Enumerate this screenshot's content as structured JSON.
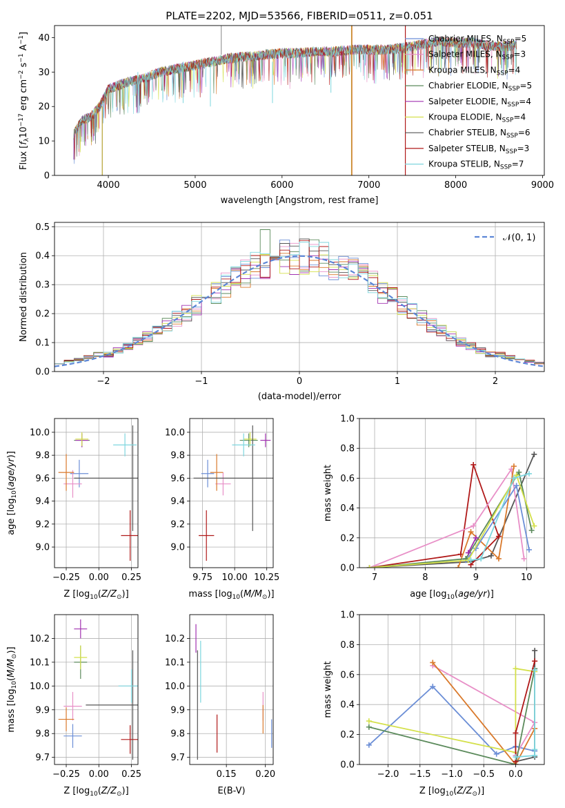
{
  "chart_data": [
    {
      "type": "line",
      "panel": "spectrum",
      "title": "PLATE=2202, MJD=53566, FIBERID=0511, z=0.051",
      "xlabel": "wavelength [Angstrom, rest frame]",
      "ylabel": "Flux [f_λ 10^-17 erg cm^-2 s^-1 A^-1]",
      "xlim": [
        3380,
        9020
      ],
      "ylim": [
        0,
        43.5
      ],
      "xticks": [
        4000,
        5000,
        6000,
        7000,
        8000,
        9000
      ],
      "yticks": [
        0,
        10,
        20,
        30,
        40
      ],
      "grid": false,
      "legend_position": "upper right",
      "legend": [
        {
          "label": "Chabrier MILES, N_SSP=5",
          "color": "#6b8ed6"
        },
        {
          "label": "Salpeter MILES, N_SSP=3",
          "color": "#e88fc7"
        },
        {
          "label": "Kroupa MILES, N_SSP=4",
          "color": "#d9792b"
        },
        {
          "label": "Chabrier ELODIE, N_SSP=5",
          "color": "#5b8a5b"
        },
        {
          "label": "Salpeter ELODIE, N_SSP=4",
          "color": "#a030b0"
        },
        {
          "label": "Kroupa ELODIE, N_SSP=4",
          "color": "#d4e04a"
        },
        {
          "label": "Chabrier STELIB, N_SSP=6",
          "color": "#555555"
        },
        {
          "label": "Salpeter STELIB, N_SSP=3",
          "color": "#b01818"
        },
        {
          "label": "Kroupa STELIB, N_SSP=7",
          "color": "#7dd6de"
        }
      ],
      "continuum": {
        "x": [
          3600,
          3700,
          3800,
          3900,
          4000,
          4100,
          4200,
          4400,
          4600,
          4800,
          5000,
          5200,
          5400,
          5600,
          5800,
          6000,
          6200,
          6400,
          6600,
          6800,
          7000,
          7200,
          7400,
          7600,
          7800,
          8000,
          8200,
          8400,
          8600,
          8700
        ],
        "y": [
          12,
          16,
          17,
          20,
          25,
          26,
          27,
          28,
          30,
          31,
          32,
          33,
          34,
          34.5,
          35,
          35.5,
          35.5,
          36,
          36,
          36.5,
          36.5,
          36.5,
          37,
          38,
          39,
          38.5,
          38.5,
          37.5,
          37.5,
          38
        ]
      },
      "vertical_spikes_x": [
        3930,
        5300,
        6800,
        6805,
        7420
      ]
    },
    {
      "type": "line",
      "panel": "residual-distribution",
      "xlabel": "(data-model)/error",
      "ylabel": "Normed distribution",
      "xlim": [
        -2.5,
        2.5
      ],
      "ylim": [
        0,
        0.515
      ],
      "xticks": [
        -2,
        -1,
        0,
        1,
        2
      ],
      "yticks": [
        0.0,
        0.1,
        0.2,
        0.3,
        0.4,
        0.5
      ],
      "grid": true,
      "legend_position": "upper right",
      "legend": [
        {
          "label": "𝒩(0, 1)",
          "color": "#5c86d6",
          "dashed": true
        }
      ],
      "histogram_bin_width": 0.1,
      "histogram_peak_approx": 0.49,
      "reference_curve": "normal pdf, mean 0, sd 1"
    },
    {
      "type": "scatter",
      "panel": "age-vs-Z",
      "xlabel": "Z [log10(Z/Z⊙)]",
      "ylabel": "age [log10(age/yr)]",
      "xlim": [
        -0.34,
        0.3
      ],
      "ylim": [
        8.82,
        10.12
      ],
      "xticks": [
        -0.25,
        0.0,
        0.25
      ],
      "yticks": [
        9.0,
        9.2,
        9.4,
        9.6,
        9.8,
        10.0
      ],
      "grid": true,
      "points": [
        {
          "x": -0.15,
          "y": 9.64,
          "xerr": 0.07,
          "yerr": 0.12,
          "color": "#6b8ed6"
        },
        {
          "x": -0.2,
          "y": 9.55,
          "xerr": 0.07,
          "yerr": 0.12,
          "color": "#e88fc7"
        },
        {
          "x": -0.25,
          "y": 9.65,
          "xerr": 0.06,
          "yerr": 0.16,
          "color": "#d9792b"
        },
        {
          "x": -0.13,
          "y": 9.93,
          "xerr": 0.06,
          "yerr": 0.06,
          "color": "#5b8a5b"
        },
        {
          "x": -0.13,
          "y": 9.93,
          "xerr": 0.05,
          "yerr": 0.06,
          "color": "#a030b0"
        },
        {
          "x": -0.13,
          "y": 9.94,
          "xerr": 0.05,
          "yerr": 0.06,
          "color": "#d4e04a"
        },
        {
          "x": 0.26,
          "y": 9.6,
          "xerr": 0.45,
          "yerr": 0.46,
          "color": "#555555"
        },
        {
          "x": 0.24,
          "y": 9.1,
          "xerr": 0.07,
          "yerr": 0.22,
          "color": "#b01818"
        },
        {
          "x": 0.2,
          "y": 9.89,
          "xerr": 0.09,
          "yerr": 0.1,
          "color": "#7dd6de"
        }
      ]
    },
    {
      "type": "scatter",
      "panel": "age-vs-mass",
      "xlabel": "mass [log10(M/M⊙)]",
      "ylabel": "",
      "xlim": [
        9.65,
        10.3
      ],
      "ylim": [
        8.82,
        10.12
      ],
      "xticks": [
        9.75,
        10.0,
        10.25
      ],
      "yticks": [
        9.0,
        9.2,
        9.4,
        9.6,
        9.8,
        10.0
      ],
      "grid": true,
      "points": [
        {
          "x": 9.79,
          "y": 9.64,
          "xerr": 0.05,
          "yerr": 0.12,
          "color": "#6b8ed6"
        },
        {
          "x": 9.91,
          "y": 9.55,
          "xerr": 0.06,
          "yerr": 0.1,
          "color": "#e88fc7"
        },
        {
          "x": 9.86,
          "y": 9.65,
          "xerr": 0.05,
          "yerr": 0.16,
          "color": "#d9792b"
        },
        {
          "x": 10.11,
          "y": 9.93,
          "xerr": 0.07,
          "yerr": 0.06,
          "color": "#5b8a5b"
        },
        {
          "x": 10.24,
          "y": 9.93,
          "xerr": 0.04,
          "yerr": 0.06,
          "color": "#a030b0"
        },
        {
          "x": 10.12,
          "y": 9.94,
          "xerr": 0.05,
          "yerr": 0.06,
          "color": "#d4e04a"
        },
        {
          "x": 10.14,
          "y": 9.6,
          "xerr": 0.46,
          "yerr": 0.46,
          "color": "#555555"
        },
        {
          "x": 9.78,
          "y": 9.1,
          "xerr": 0.06,
          "yerr": 0.22,
          "color": "#b01818"
        },
        {
          "x": 10.07,
          "y": 9.89,
          "xerr": 0.09,
          "yerr": 0.1,
          "color": "#7dd6de"
        }
      ]
    },
    {
      "type": "line",
      "panel": "mass-weight-vs-age",
      "xlabel": "age [log10(age/yr)]",
      "ylabel": "mass weight",
      "xlim": [
        6.7,
        10.35
      ],
      "ylim": [
        0,
        1
      ],
      "xticks": [
        7,
        8,
        9,
        10
      ],
      "yticks": [
        0.0,
        0.2,
        0.4,
        0.6,
        0.8,
        1.0
      ],
      "grid": true,
      "series": [
        {
          "color": "#555555",
          "x": [
            6.9,
            8.9,
            9.3,
            10.15
          ],
          "y": [
            0.0,
            0.04,
            0.08,
            0.76
          ]
        },
        {
          "color": "#b01818",
          "x": [
            6.9,
            8.7,
            8.95,
            9.45,
            8.9
          ],
          "y": [
            0.0,
            0.09,
            0.69,
            0.21,
            0.02
          ]
        },
        {
          "color": "#e88fc7",
          "x": [
            6.9,
            8.95,
            9.7,
            9.95
          ],
          "y": [
            0.0,
            0.28,
            0.66,
            0.06
          ]
        },
        {
          "color": "#d9792b",
          "x": [
            8.65,
            8.9,
            9.45,
            9.75
          ],
          "y": [
            0.0,
            0.24,
            0.06,
            0.68
          ]
        },
        {
          "color": "#6b8ed6",
          "x": [
            8.8,
            9.0,
            9.8,
            10.05
          ],
          "y": [
            0.05,
            0.13,
            0.55,
            0.12
          ]
        },
        {
          "color": "#5b8a5b",
          "x": [
            6.9,
            8.8,
            9.85,
            10.1
          ],
          "y": [
            0.0,
            0.06,
            0.64,
            0.25
          ]
        },
        {
          "color": "#d4e04a",
          "x": [
            6.9,
            8.85,
            9.8,
            10.15
          ],
          "y": [
            0.0,
            0.05,
            0.62,
            0.28
          ]
        },
        {
          "color": "#7dd6de",
          "x": [
            8.9,
            9.1,
            9.75,
            10.05
          ],
          "y": [
            0.05,
            0.06,
            0.6,
            0.63
          ]
        },
        {
          "color": "#a030b0",
          "x": [
            8.85,
            9.0
          ],
          "y": [
            0.1,
            0.2
          ]
        }
      ]
    },
    {
      "type": "scatter",
      "panel": "mass-vs-Z",
      "xlabel": "Z [log10(Z/Z⊙)]",
      "ylabel": "mass [log10(M/M⊙)]",
      "xlim": [
        -0.34,
        0.3
      ],
      "ylim": [
        9.67,
        10.3
      ],
      "xticks": [
        -0.25,
        0.0,
        0.25
      ],
      "yticks": [
        9.7,
        9.8,
        9.9,
        10.0,
        10.1,
        10.2
      ],
      "grid": true,
      "points": [
        {
          "x": -0.2,
          "y": 9.79,
          "xerr": 0.07,
          "yerr": 0.05,
          "color": "#6b8ed6"
        },
        {
          "x": -0.2,
          "y": 9.915,
          "xerr": 0.07,
          "yerr": 0.06,
          "color": "#e88fc7"
        },
        {
          "x": -0.25,
          "y": 9.86,
          "xerr": 0.06,
          "yerr": 0.05,
          "color": "#d9792b"
        },
        {
          "x": -0.14,
          "y": 10.1,
          "xerr": 0.05,
          "yerr": 0.07,
          "color": "#5b8a5b"
        },
        {
          "x": -0.14,
          "y": 10.24,
          "xerr": 0.05,
          "yerr": 0.04,
          "color": "#a030b0"
        },
        {
          "x": -0.14,
          "y": 10.12,
          "xerr": 0.05,
          "yerr": 0.05,
          "color": "#d4e04a"
        },
        {
          "x": 0.26,
          "y": 9.92,
          "xerr": 0.36,
          "yerr": 0.23,
          "color": "#555555"
        },
        {
          "x": 0.24,
          "y": 9.775,
          "xerr": 0.07,
          "yerr": 0.06,
          "color": "#b01818"
        },
        {
          "x": 0.25,
          "y": 10.0,
          "xerr": 0.1,
          "yerr": 0.07,
          "color": "#7dd6de"
        }
      ]
    },
    {
      "type": "scatter",
      "panel": "mass-vs-EBV",
      "xlabel": "E(B-V)",
      "ylabel": "",
      "xlim": [
        0.103,
        0.21
      ],
      "ylim": [
        9.67,
        10.3
      ],
      "xticks": [
        0.15,
        0.2
      ],
      "yticks": [
        9.7,
        9.8,
        9.9,
        10.0,
        10.1,
        10.2
      ],
      "grid": true,
      "points": [
        {
          "x": 0.208,
          "y": 9.8,
          "yerr": 0.06,
          "color": "#6b8ed6"
        },
        {
          "x": 0.197,
          "y": 9.915,
          "yerr": 0.06,
          "color": "#e88fc7"
        },
        {
          "x": 0.197,
          "y": 9.86,
          "yerr": 0.06,
          "color": "#d9792b"
        },
        {
          "x": 0.111,
          "y": 10.2,
          "yerr": 0.06,
          "color": "#a030b0"
        },
        {
          "x": 0.113,
          "y": 9.92,
          "yerr": 0.23,
          "color": "#555555"
        },
        {
          "x": 0.138,
          "y": 9.8,
          "yerr": 0.08,
          "color": "#b01818"
        },
        {
          "x": 0.117,
          "y": 10.06,
          "yerr": 0.13,
          "color": "#7dd6de"
        }
      ]
    },
    {
      "type": "line",
      "panel": "mass-weight-vs-Z",
      "xlabel": "Z [log10(Z/Z⊙)]",
      "ylabel": "mass weight",
      "xlim": [
        -2.45,
        0.45
      ],
      "ylim": [
        0,
        1
      ],
      "xticks": [
        -2.0,
        -1.5,
        -1.0,
        -0.5,
        0.0
      ],
      "yticks": [
        0.0,
        0.2,
        0.4,
        0.6,
        0.8,
        1.0
      ],
      "grid": true,
      "series": [
        {
          "color": "#6b8ed6",
          "x": [
            -2.3,
            -1.3,
            -0.3,
            0.0,
            0.3
          ],
          "y": [
            0.13,
            0.52,
            0.07,
            0.12,
            0.09
          ]
        },
        {
          "color": "#e88fc7",
          "x": [
            -1.3,
            0.3,
            0.0
          ],
          "y": [
            0.66,
            0.28,
            0.06
          ]
        },
        {
          "color": "#d9792b",
          "x": [
            -1.3,
            0.0,
            0.3
          ],
          "y": [
            0.68,
            0.0,
            0.24
          ]
        },
        {
          "color": "#d4e04a",
          "x": [
            -2.3,
            0.0,
            0.0,
            0.3
          ],
          "y": [
            0.29,
            0.08,
            0.64,
            0.62
          ]
        },
        {
          "color": "#5b8a5b",
          "x": [
            -2.3,
            0.0,
            0.3
          ],
          "y": [
            0.25,
            0.0,
            0.64
          ]
        },
        {
          "color": "#555555",
          "x": [
            0.0,
            0.3,
            0.3
          ],
          "y": [
            0.02,
            0.05,
            0.76
          ]
        },
        {
          "color": "#b01818",
          "x": [
            0.0,
            0.0,
            0.3
          ],
          "y": [
            0.02,
            0.21,
            0.69
          ]
        },
        {
          "color": "#7dd6de",
          "x": [
            0.0,
            0.3,
            0.3,
            0.3
          ],
          "y": [
            0.05,
            0.06,
            0.63,
            0.1
          ]
        }
      ]
    }
  ]
}
